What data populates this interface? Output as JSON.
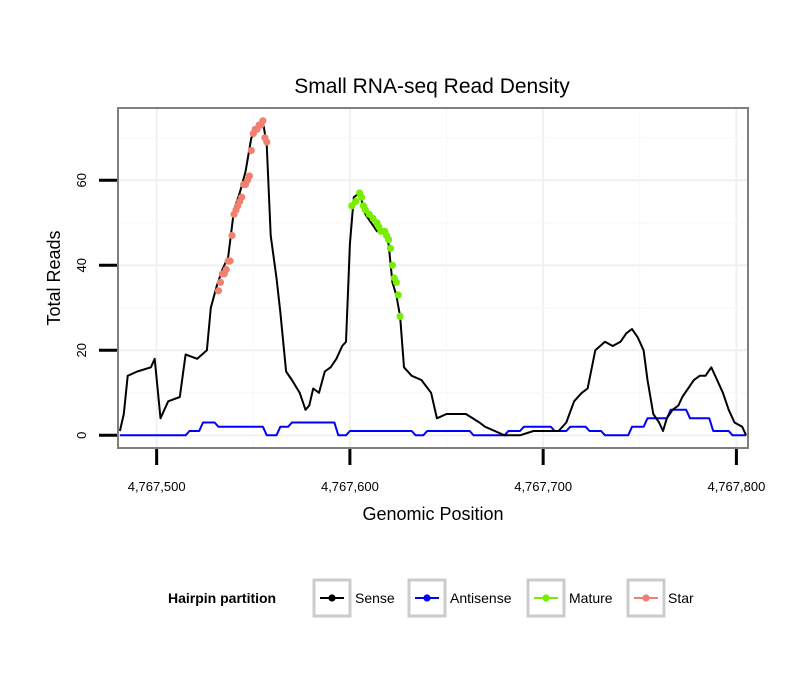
{
  "chart_data": {
    "type": "line",
    "title": "Small RNA-seq Read Density",
    "xlabel": "Genomic Position",
    "ylabel": "Total Reads",
    "xlim": [
      4767480,
      4767806
    ],
    "ylim": [
      -3,
      77
    ],
    "x_ticks": [
      4767500,
      4767600,
      4767700,
      4767800
    ],
    "x_tick_labels": [
      "4,767,500",
      "4,767,600",
      "4,767,700",
      "4,767,800"
    ],
    "y_ticks": [
      0,
      20,
      40,
      60
    ],
    "y_tick_labels": [
      "0",
      "20",
      "40",
      "60"
    ],
    "grid": true,
    "legend": {
      "title": "Hairpin partition",
      "position": "bottom",
      "entries": [
        "Sense",
        "Antisense",
        "Mature",
        "Star"
      ]
    },
    "series": [
      {
        "name": "Sense",
        "color": "#000000",
        "style": "line",
        "points": [
          [
            4767481,
            1
          ],
          [
            4767483,
            5
          ],
          [
            4767485,
            14
          ],
          [
            4767490,
            15
          ],
          [
            4767497,
            16
          ],
          [
            4767499,
            18
          ],
          [
            4767502,
            4
          ],
          [
            4767506,
            8
          ],
          [
            4767512,
            9
          ],
          [
            4767515,
            19
          ],
          [
            4767521,
            18
          ],
          [
            4767526,
            20
          ],
          [
            4767528,
            30
          ],
          [
            4767531,
            35
          ],
          [
            4767534,
            39
          ],
          [
            4767537,
            42
          ],
          [
            4767540,
            53
          ],
          [
            4767543,
            57
          ],
          [
            4767546,
            62
          ],
          [
            4767549,
            70
          ],
          [
            4767552,
            72
          ],
          [
            4767555,
            74
          ],
          [
            4767557,
            68
          ],
          [
            4767559,
            47
          ],
          [
            4767562,
            37
          ],
          [
            4767564,
            29
          ],
          [
            4767567,
            15
          ],
          [
            4767570,
            13
          ],
          [
            4767574,
            10
          ],
          [
            4767577,
            6
          ],
          [
            4767579,
            7
          ],
          [
            4767581,
            11
          ],
          [
            4767584,
            10
          ],
          [
            4767587,
            15
          ],
          [
            4767590,
            16
          ],
          [
            4767593,
            18
          ],
          [
            4767596,
            21
          ],
          [
            4767598,
            22
          ],
          [
            4767600,
            45
          ],
          [
            4767602,
            56
          ],
          [
            4767605,
            57
          ],
          [
            4767608,
            52
          ],
          [
            4767611,
            50
          ],
          [
            4767614,
            48
          ],
          [
            4767617,
            48
          ],
          [
            4767620,
            45
          ],
          [
            4767622,
            36
          ],
          [
            4767624,
            33
          ],
          [
            4767626,
            28
          ],
          [
            4767628,
            16
          ],
          [
            4767632,
            14
          ],
          [
            4767637,
            13
          ],
          [
            4767642,
            10
          ],
          [
            4767645,
            4
          ],
          [
            4767650,
            5
          ],
          [
            4767660,
            5
          ],
          [
            4767667,
            3
          ],
          [
            4767670,
            2
          ],
          [
            4767675,
            1
          ],
          [
            4767680,
            0
          ],
          [
            4767688,
            0
          ],
          [
            4767695,
            1
          ],
          [
            4767702,
            1
          ],
          [
            4767708,
            1
          ],
          [
            4767712,
            3
          ],
          [
            4767716,
            8
          ],
          [
            4767720,
            10
          ],
          [
            4767723,
            11
          ],
          [
            4767727,
            20
          ],
          [
            4767732,
            22
          ],
          [
            4767736,
            21
          ],
          [
            4767740,
            22
          ],
          [
            4767743,
            24
          ],
          [
            4767746,
            25
          ],
          [
            4767749,
            23
          ],
          [
            4767752,
            20
          ],
          [
            4767754,
            13
          ],
          [
            4767757,
            5
          ],
          [
            4767760,
            3
          ],
          [
            4767762,
            1
          ],
          [
            4767764,
            4
          ],
          [
            4767767,
            6
          ],
          [
            4767770,
            7
          ],
          [
            4767772,
            9
          ],
          [
            4767775,
            11
          ],
          [
            4767778,
            13
          ],
          [
            4767781,
            14
          ],
          [
            4767784,
            14
          ],
          [
            4767787,
            16
          ],
          [
            4767790,
            13
          ],
          [
            4767793,
            10
          ],
          [
            4767796,
            6
          ],
          [
            4767799,
            3
          ],
          [
            4767803,
            2
          ],
          [
            4767805,
            0
          ]
        ]
      },
      {
        "name": "Antisense",
        "color": "#0000ff",
        "style": "step",
        "points": [
          [
            4767481,
            0
          ],
          [
            4767497,
            0
          ],
          [
            4767499,
            0
          ],
          [
            4767515,
            0
          ],
          [
            4767517,
            1
          ],
          [
            4767522,
            1
          ],
          [
            4767524,
            3
          ],
          [
            4767530,
            3
          ],
          [
            4767532,
            2
          ],
          [
            4767555,
            2
          ],
          [
            4767557,
            0
          ],
          [
            4767562,
            0
          ],
          [
            4767564,
            2
          ],
          [
            4767568,
            2
          ],
          [
            4767570,
            3
          ],
          [
            4767592,
            3
          ],
          [
            4767594,
            0
          ],
          [
            4767598,
            0
          ],
          [
            4767600,
            1
          ],
          [
            4767632,
            1
          ],
          [
            4767634,
            0
          ],
          [
            4767638,
            0
          ],
          [
            4767640,
            1
          ],
          [
            4767662,
            1
          ],
          [
            4767664,
            0
          ],
          [
            4767680,
            0
          ],
          [
            4767682,
            1
          ],
          [
            4767688,
            1
          ],
          [
            4767690,
            2
          ],
          [
            4767704,
            2
          ],
          [
            4767706,
            1
          ],
          [
            4767712,
            1
          ],
          [
            4767714,
            2
          ],
          [
            4767722,
            2
          ],
          [
            4767724,
            1
          ],
          [
            4767730,
            1
          ],
          [
            4767732,
            0
          ],
          [
            4767744,
            0
          ],
          [
            4767746,
            2
          ],
          [
            4767752,
            2
          ],
          [
            4767754,
            4
          ],
          [
            4767764,
            4
          ],
          [
            4767766,
            6
          ],
          [
            4767774,
            6
          ],
          [
            4767776,
            4
          ],
          [
            4767786,
            4
          ],
          [
            4767788,
            1
          ],
          [
            4767796,
            1
          ],
          [
            4767798,
            0
          ],
          [
            4767805,
            0
          ]
        ]
      },
      {
        "name": "Mature",
        "color": "#76ee00",
        "style": "points",
        "points": [
          [
            4767601,
            54
          ],
          [
            4767603,
            55
          ],
          [
            4767605,
            57
          ],
          [
            4767606,
            56
          ],
          [
            4767607,
            54
          ],
          [
            4767608,
            53
          ],
          [
            4767610,
            52
          ],
          [
            4767612,
            51
          ],
          [
            4767614,
            50
          ],
          [
            4767615,
            49
          ],
          [
            4767616,
            48
          ],
          [
            4767618,
            48
          ],
          [
            4767619,
            47
          ],
          [
            4767620,
            46
          ],
          [
            4767621,
            44
          ],
          [
            4767622,
            40
          ],
          [
            4767623,
            37
          ],
          [
            4767624,
            36
          ],
          [
            4767625,
            33
          ],
          [
            4767626,
            28
          ]
        ]
      },
      {
        "name": "Star",
        "color": "#f08070",
        "style": "points",
        "points": [
          [
            4767532,
            34
          ],
          [
            4767533,
            36
          ],
          [
            4767534,
            38
          ],
          [
            4767535,
            38
          ],
          [
            4767536,
            39
          ],
          [
            4767537,
            41
          ],
          [
            4767538,
            41
          ],
          [
            4767539,
            47
          ],
          [
            4767540,
            52
          ],
          [
            4767541,
            53
          ],
          [
            4767542,
            54
          ],
          [
            4767543,
            55
          ],
          [
            4767544,
            56
          ],
          [
            4767545,
            59
          ],
          [
            4767546,
            59
          ],
          [
            4767547,
            60
          ],
          [
            4767548,
            61
          ],
          [
            4767549,
            67
          ],
          [
            4767550,
            71
          ],
          [
            4767551,
            72
          ],
          [
            4767552,
            72
          ],
          [
            4767553,
            73
          ],
          [
            4767554,
            73
          ],
          [
            4767555,
            74
          ],
          [
            4767556,
            70
          ],
          [
            4767557,
            69
          ]
        ]
      }
    ]
  }
}
